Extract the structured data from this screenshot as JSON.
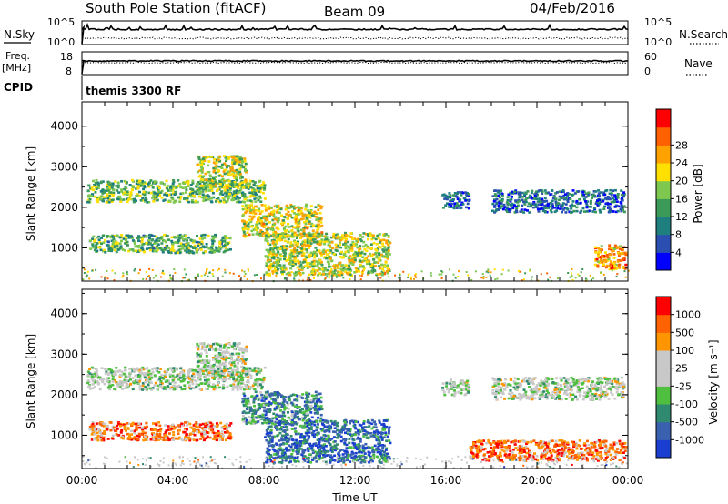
{
  "header": {
    "title": "South Pole Station (fitACF)",
    "beam": "Beam 09",
    "date": "04/Feb/2016"
  },
  "strip": {
    "nsky_label": "N.Sky",
    "nsearch_label": "N.Search",
    "nsky_ticks": [
      "10^5",
      "10^0"
    ],
    "nsearch_ticks": [
      "10^5",
      "10^0"
    ],
    "freq_label_1": "Freq.",
    "freq_label_2": "[MHz]",
    "freq_ticks": [
      "18",
      "8"
    ],
    "nave_label": "Nave",
    "nave_ticks": [
      "60",
      "0"
    ],
    "cpid_label": "CPID",
    "cpid_value": "themis 3300 RF"
  },
  "chart_data": [
    {
      "type": "heatmap",
      "name": "power-panel",
      "ylabel": "Slant Range [km]",
      "ylim": [
        180,
        4600
      ],
      "yticks": [
        1000,
        2000,
        3000,
        4000
      ],
      "xlim": [
        0,
        24
      ],
      "xticks": [
        0,
        4,
        8,
        12,
        16,
        20,
        24
      ],
      "colorbar": {
        "label": "Power [dB]",
        "ticks": [
          "4",
          "8",
          "12",
          "16",
          "20",
          "24",
          "28"
        ],
        "colors": [
          "#0000ff",
          "#2b4fb0",
          "#1f7f7f",
          "#3c9a58",
          "#7ec850",
          "#ffe000",
          "#ffa200",
          "#ff6000",
          "#ff0000"
        ]
      },
      "bands": [
        {
          "t0": 0.2,
          "t1": 8.0,
          "r0": 2150,
          "r1": 2700,
          "level": 0.45
        },
        {
          "t0": 5.0,
          "t1": 7.2,
          "r0": 2500,
          "r1": 3300,
          "level": 0.55
        },
        {
          "t0": 0.3,
          "t1": 6.5,
          "r0": 900,
          "r1": 1350,
          "level": 0.4
        },
        {
          "t0": 7.0,
          "t1": 10.5,
          "r0": 1300,
          "r1": 2100,
          "level": 0.6
        },
        {
          "t0": 8.0,
          "t1": 13.5,
          "r0": 350,
          "r1": 1400,
          "level": 0.55
        },
        {
          "t0": 15.8,
          "t1": 17.0,
          "r0": 2000,
          "r1": 2400,
          "level": 0.15
        },
        {
          "t0": 18.0,
          "t1": 23.8,
          "r0": 1900,
          "r1": 2450,
          "level": 0.2
        },
        {
          "t0": 22.5,
          "t1": 23.9,
          "r0": 500,
          "r1": 1100,
          "level": 0.75
        }
      ]
    },
    {
      "type": "heatmap",
      "name": "velocity-panel",
      "ylabel": "Slant Range [km]",
      "xlabel": "Time UT",
      "ylim": [
        180,
        4600
      ],
      "yticks": [
        1000,
        2000,
        3000,
        4000
      ],
      "xlim": [
        0,
        24
      ],
      "xticks": [
        0,
        4,
        8,
        12,
        16,
        20,
        24
      ],
      "xtick_labels": [
        "00:00",
        "04:00",
        "08:00",
        "12:00",
        "16:00",
        "20:00",
        "00:00"
      ],
      "colorbar": {
        "label": "Velocity [m s^-1]",
        "ticks": [
          "1000",
          "500",
          "100",
          "25",
          "-25",
          "-100",
          "-500",
          "-1000"
        ],
        "colors": [
          "#1a3fd0",
          "#3a60b0",
          "#2f8a6f",
          "#4fbf40",
          "#c8c8c8",
          "#c8c8c8",
          "#ff9500",
          "#ff6200",
          "#ff0000"
        ]
      },
      "bands": [
        {
          "t0": 0.2,
          "t1": 8.0,
          "r0": 2150,
          "r1": 2700,
          "level": 0.5
        },
        {
          "t0": 5.0,
          "t1": 7.2,
          "r0": 2500,
          "r1": 3300,
          "level": 0.5
        },
        {
          "t0": 0.3,
          "t1": 6.5,
          "r0": 900,
          "r1": 1350,
          "level": 0.82
        },
        {
          "t0": 7.0,
          "t1": 10.5,
          "r0": 1300,
          "r1": 2100,
          "level": 0.25
        },
        {
          "t0": 8.0,
          "t1": 13.5,
          "r0": 350,
          "r1": 1400,
          "level": 0.15
        },
        {
          "t0": 15.8,
          "t1": 17.0,
          "r0": 2000,
          "r1": 2400,
          "level": 0.5
        },
        {
          "t0": 18.0,
          "t1": 23.8,
          "r0": 1900,
          "r1": 2450,
          "level": 0.5
        },
        {
          "t0": 17.0,
          "t1": 23.9,
          "r0": 400,
          "r1": 900,
          "level": 0.85
        }
      ]
    }
  ]
}
